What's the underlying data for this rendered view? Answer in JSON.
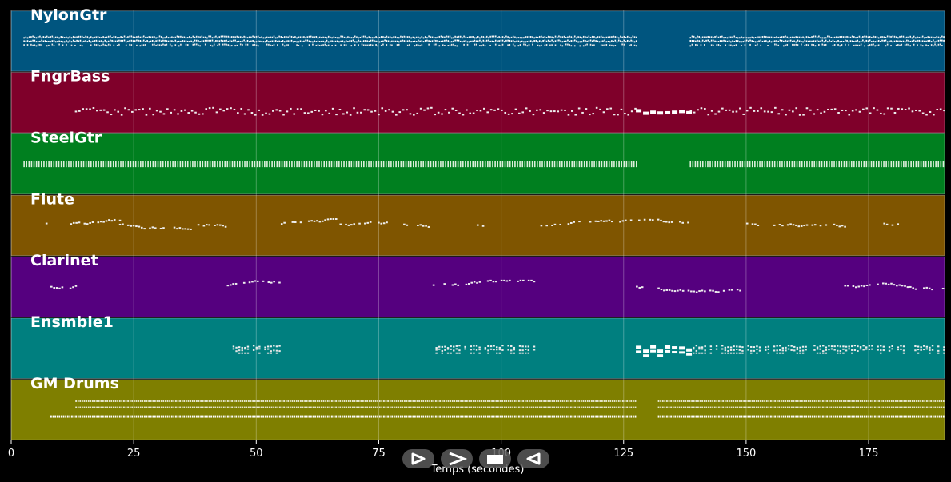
{
  "chart_data": {
    "type": "piano-roll",
    "xlabel": "Temps (secondes)",
    "xlim": [
      0,
      190.5
    ],
    "x_ticks": [
      0,
      25,
      50,
      75,
      100,
      125,
      150,
      175
    ],
    "grid": true,
    "tracks": [
      {
        "name": "NylonGtr",
        "color": "#00557f",
        "segments": [
          {
            "start": 2.5,
            "end": 127.5,
            "style": "dense"
          },
          {
            "start": 138.5,
            "end": 190.5,
            "style": "dense"
          }
        ]
      },
      {
        "name": "FngrBass",
        "color": "#7f002a",
        "segments": [
          {
            "start": 13,
            "end": 127.5,
            "style": "sparse"
          },
          {
            "start": 127.5,
            "end": 138.5,
            "style": "bold"
          },
          {
            "start": 138.5,
            "end": 190.5,
            "style": "sparse"
          }
        ]
      },
      {
        "name": "SteelGtr",
        "color": "#007f1f",
        "segments": [
          {
            "start": 2.5,
            "end": 127.5,
            "style": "strum"
          },
          {
            "start": 138.5,
            "end": 190.5,
            "style": "strum"
          }
        ]
      },
      {
        "name": "Flute",
        "color": "#7f5500",
        "segments": [
          {
            "start": 7,
            "end": 8,
            "style": "melody"
          },
          {
            "start": 12,
            "end": 22,
            "style": "melody"
          },
          {
            "start": 22,
            "end": 37,
            "style": "melody"
          },
          {
            "start": 38,
            "end": 44,
            "style": "melody"
          },
          {
            "start": 55,
            "end": 67,
            "style": "melody"
          },
          {
            "start": 67,
            "end": 78,
            "style": "melody"
          },
          {
            "start": 80,
            "end": 86,
            "style": "melody"
          },
          {
            "start": 95,
            "end": 97,
            "style": "melody"
          },
          {
            "start": 108,
            "end": 138,
            "style": "melody"
          },
          {
            "start": 150,
            "end": 170,
            "style": "melody"
          },
          {
            "start": 178,
            "end": 181,
            "style": "melody"
          }
        ]
      },
      {
        "name": "Clarinet",
        "color": "#55007f",
        "segments": [
          {
            "start": 8,
            "end": 13,
            "style": "melody"
          },
          {
            "start": 44,
            "end": 55,
            "style": "melody"
          },
          {
            "start": 86,
            "end": 107,
            "style": "melody"
          },
          {
            "start": 127.5,
            "end": 149,
            "style": "melody"
          },
          {
            "start": 170,
            "end": 190.5,
            "style": "melody"
          }
        ]
      },
      {
        "name": "Ensmble1",
        "color": "#007f7f",
        "segments": [
          {
            "start": 44,
            "end": 55,
            "style": "chord"
          },
          {
            "start": 86,
            "end": 107,
            "style": "chord"
          },
          {
            "start": 127.5,
            "end": 138.5,
            "style": "bold"
          },
          {
            "start": 138.5,
            "end": 190.5,
            "style": "chord"
          }
        ]
      },
      {
        "name": "GM Drums",
        "color": "#7f7f00",
        "segments": [
          {
            "start": 8,
            "end": 127.5,
            "style": "drums"
          },
          {
            "start": 132,
            "end": 190.5,
            "style": "drums"
          }
        ]
      }
    ]
  },
  "controls": {
    "play_icon": "play-outline-icon",
    "forward_icon": "chevron-right-icon",
    "stop_icon": "stop-icon",
    "back_icon": "triangle-left-icon"
  }
}
